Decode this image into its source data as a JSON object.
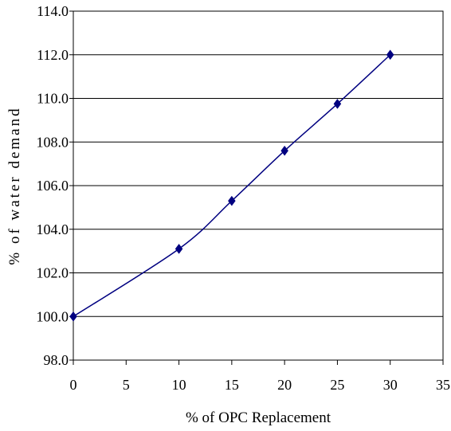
{
  "chart_data": {
    "type": "line",
    "title": "",
    "xlabel": "% of OPC Replacement",
    "ylabel": "% of water demand",
    "xlim": [
      0,
      35
    ],
    "ylim": [
      98,
      114
    ],
    "x_ticks": [
      "0",
      "5",
      "10",
      "15",
      "20",
      "25",
      "30",
      "35"
    ],
    "y_ticks": [
      "98.0",
      "100.0",
      "102.0",
      "104.0",
      "106.0",
      "108.0",
      "110.0",
      "112.0",
      "114.0"
    ],
    "grid": "horizontal",
    "legend": "none",
    "series": [
      {
        "color": "#000080",
        "marker": "diamond",
        "x": [
          0,
          10,
          15,
          20,
          25,
          30
        ],
        "y": [
          100.0,
          103.1,
          105.3,
          107.6,
          109.75,
          112.0
        ]
      }
    ]
  }
}
